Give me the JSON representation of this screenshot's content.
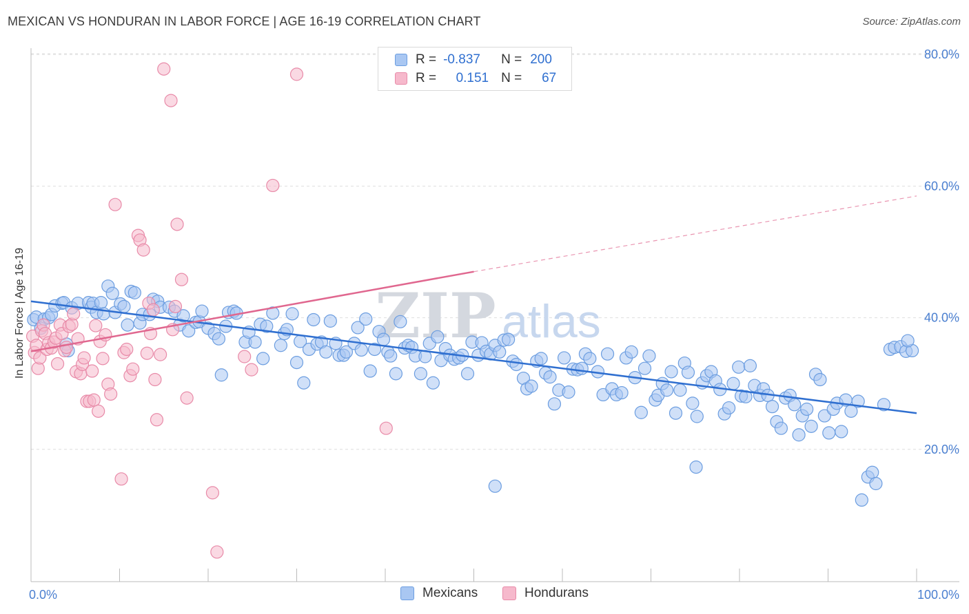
{
  "title": "MEXICAN VS HONDURAN IN LABOR FORCE | AGE 16-19 CORRELATION CHART",
  "source": "Source: ZipAtlas.com",
  "watermark": {
    "zip": "ZIP",
    "atlas": "atlas"
  },
  "legend": {
    "rows": [
      {
        "r_label": "R =",
        "r_value": "-0.837",
        "n_label": "N =",
        "n_value": "200"
      },
      {
        "r_label": "R =",
        "r_value": "0.151",
        "n_label": "N =",
        "n_value": "67"
      }
    ]
  },
  "bottom_legend": {
    "mexicans": "Mexicans",
    "hondurans": "Hondurans"
  },
  "colors": {
    "mexicans_fill": "#a9c7f2",
    "mexicans_stroke": "#6b9de0",
    "mexicans_line": "#2f6fd0",
    "hondurans_fill": "#f6b9cc",
    "hondurans_stroke": "#e88aa8",
    "hondurans_line": "#e0678f",
    "axis_text": "#4a7fd0",
    "grid": "#dedede"
  },
  "chart_data": {
    "type": "scatter",
    "title": "MEXICAN VS HONDURAN IN LABOR FORCE | AGE 16-19 CORRELATION CHART",
    "xlabel": "",
    "ylabel": "In Labor Force | Age 16-19",
    "xlim": [
      0,
      100
    ],
    "ylim": [
      0,
      82
    ],
    "x_tick_labels": [
      "0.0%",
      "100.0%"
    ],
    "y_ticks": [
      20,
      40,
      60,
      80
    ],
    "y_tick_labels": [
      "20.0%",
      "40.0%",
      "60.0%",
      "80.0%"
    ],
    "grid": true,
    "legend_position": "top-center",
    "series": [
      {
        "name": "Mexicans",
        "r": -0.837,
        "n": 200,
        "trend": {
          "x0": 0,
          "y0": 42.5,
          "x1": 100,
          "y1": 25.5,
          "dashed_from": null
        },
        "points": [
          [
            0.3,
            39.7
          ],
          [
            0.6,
            40.1
          ],
          [
            1.1,
            38.4
          ],
          [
            1.5,
            39.8
          ],
          [
            2,
            40
          ],
          [
            2.3,
            40.5
          ],
          [
            2.7,
            41.8
          ],
          [
            3.5,
            42.2
          ],
          [
            3.7,
            42.3
          ],
          [
            4,
            36
          ],
          [
            4.2,
            35
          ],
          [
            4.6,
            41.5
          ],
          [
            5.3,
            42.2
          ],
          [
            6.5,
            42.3
          ],
          [
            6.8,
            41.6
          ],
          [
            7,
            42.2
          ],
          [
            7.4,
            40.8
          ],
          [
            7.9,
            42.3
          ],
          [
            8.2,
            40.6
          ],
          [
            8.7,
            44.8
          ],
          [
            9.2,
            43.7
          ],
          [
            9.5,
            40.8
          ],
          [
            10.1,
            42.1
          ],
          [
            10.5,
            41.7
          ],
          [
            10.9,
            38.9
          ],
          [
            11.3,
            44
          ],
          [
            11.7,
            43.8
          ],
          [
            12.3,
            39.2
          ],
          [
            12.6,
            40.5
          ],
          [
            13.4,
            40.5
          ],
          [
            13.8,
            42.8
          ],
          [
            14.3,
            42.5
          ],
          [
            14.6,
            41.6
          ],
          [
            15.6,
            41.6
          ],
          [
            16.2,
            41
          ],
          [
            16.8,
            38.9
          ],
          [
            17.2,
            40.3
          ],
          [
            17.8,
            38
          ],
          [
            18.6,
            39.3
          ],
          [
            19,
            39.4
          ],
          [
            19.3,
            41
          ],
          [
            20,
            38.4
          ],
          [
            20.7,
            37.6
          ],
          [
            21.2,
            36.8
          ],
          [
            21.5,
            31.3
          ],
          [
            22,
            38.7
          ],
          [
            22.3,
            40.8
          ],
          [
            22.9,
            41
          ],
          [
            23.2,
            40.7
          ],
          [
            24.2,
            36.3
          ],
          [
            24.6,
            37.8
          ],
          [
            25.3,
            36.3
          ],
          [
            25.9,
            39
          ],
          [
            26.2,
            33.8
          ],
          [
            26.6,
            38.7
          ],
          [
            27.3,
            40.7
          ],
          [
            28.2,
            35.8
          ],
          [
            28.6,
            37.6
          ],
          [
            28.9,
            38.2
          ],
          [
            29.5,
            40.6
          ],
          [
            30,
            33.2
          ],
          [
            30.4,
            36.4
          ],
          [
            30.8,
            30.1
          ],
          [
            31.4,
            35.2
          ],
          [
            31.9,
            39.7
          ],
          [
            32.3,
            36
          ],
          [
            32.8,
            36.3
          ],
          [
            33.3,
            34.8
          ],
          [
            33.8,
            39.5
          ],
          [
            34.4,
            36.1
          ],
          [
            34.8,
            34.3
          ],
          [
            35.3,
            34.3
          ],
          [
            35.6,
            34.8
          ],
          [
            36.5,
            36.1
          ],
          [
            36.9,
            38.5
          ],
          [
            37.3,
            35.1
          ],
          [
            37.8,
            39.8
          ],
          [
            38.3,
            31.9
          ],
          [
            38.8,
            35.2
          ],
          [
            39.3,
            37.9
          ],
          [
            39.8,
            36.7
          ],
          [
            40.3,
            34.8
          ],
          [
            40.6,
            34.2
          ],
          [
            41.2,
            31.5
          ],
          [
            41.7,
            39.4
          ],
          [
            42.2,
            35.4
          ],
          [
            42.6,
            35.8
          ],
          [
            43,
            35.5
          ],
          [
            43.4,
            34.2
          ],
          [
            44,
            31.5
          ],
          [
            44.5,
            34.1
          ],
          [
            45,
            36.1
          ],
          [
            45.4,
            30.1
          ],
          [
            45.9,
            37.1
          ],
          [
            46.3,
            33.5
          ],
          [
            46.8,
            35.3
          ],
          [
            47.3,
            34.3
          ],
          [
            47.8,
            33.7
          ],
          [
            48.3,
            33.9
          ],
          [
            48.7,
            34.3
          ],
          [
            49.3,
            31.5
          ],
          [
            49.8,
            36.3
          ],
          [
            50.5,
            34.3
          ],
          [
            50.9,
            36.2
          ],
          [
            51.4,
            34.9
          ],
          [
            51.9,
            34.5
          ],
          [
            52.4,
            35.8
          ],
          [
            52.9,
            34.8
          ],
          [
            53.4,
            36.6
          ],
          [
            53.9,
            36.7
          ],
          [
            54.4,
            33.4
          ],
          [
            54.8,
            32.9
          ],
          [
            55.6,
            30.8
          ],
          [
            56,
            29.2
          ],
          [
            56.5,
            29.6
          ],
          [
            57.1,
            33.4
          ],
          [
            57.6,
            33.8
          ],
          [
            58.1,
            31.6
          ],
          [
            58.6,
            31
          ],
          [
            59.1,
            26.9
          ],
          [
            59.6,
            29
          ],
          [
            60.2,
            33.9
          ],
          [
            60.7,
            28.7
          ],
          [
            61.2,
            32.2
          ],
          [
            61.7,
            32.1
          ],
          [
            62.2,
            32.3
          ],
          [
            62.6,
            34.5
          ],
          [
            63.1,
            33.8
          ],
          [
            64,
            31.8
          ],
          [
            64.6,
            28.3
          ],
          [
            65.1,
            34.5
          ],
          [
            65.6,
            29.2
          ],
          [
            66.1,
            28.3
          ],
          [
            66.7,
            28.6
          ],
          [
            67.2,
            33.9
          ],
          [
            67.8,
            34.8
          ],
          [
            68.2,
            30.9
          ],
          [
            68.9,
            25.6
          ],
          [
            69.3,
            32.3
          ],
          [
            69.8,
            34.2
          ],
          [
            70.5,
            27.5
          ],
          [
            70.8,
            28.2
          ],
          [
            71.3,
            30
          ],
          [
            71.8,
            29
          ],
          [
            72.3,
            31.8
          ],
          [
            72.8,
            25.5
          ],
          [
            73.3,
            29
          ],
          [
            73.8,
            33.1
          ],
          [
            74.2,
            31.7
          ],
          [
            74.7,
            27
          ],
          [
            75.2,
            25
          ],
          [
            75.8,
            30.1
          ],
          [
            76.3,
            31.2
          ],
          [
            76.8,
            31.8
          ],
          [
            77.3,
            30.4
          ],
          [
            77.8,
            29.1
          ],
          [
            78.3,
            25.4
          ],
          [
            78.8,
            26.3
          ],
          [
            79.3,
            30
          ],
          [
            79.9,
            32.5
          ],
          [
            80.2,
            28.1
          ],
          [
            80.7,
            28
          ],
          [
            81.2,
            32.7
          ],
          [
            81.7,
            29.7
          ],
          [
            82.3,
            28.2
          ],
          [
            82.7,
            29.2
          ],
          [
            83.2,
            28.2
          ],
          [
            83.7,
            26.5
          ],
          [
            84.2,
            24.2
          ],
          [
            84.7,
            23.2
          ],
          [
            85.2,
            27.8
          ],
          [
            85.7,
            28.2
          ],
          [
            86.2,
            26.8
          ],
          [
            86.7,
            22.2
          ],
          [
            87.1,
            25.1
          ],
          [
            87.6,
            26.1
          ],
          [
            88.1,
            23.5
          ],
          [
            88.6,
            31.4
          ],
          [
            89.1,
            30.6
          ],
          [
            89.6,
            25.1
          ],
          [
            90.1,
            22.5
          ],
          [
            90.6,
            26.1
          ],
          [
            91,
            27
          ],
          [
            91.5,
            22.7
          ],
          [
            92,
            27.5
          ],
          [
            92.6,
            25.8
          ],
          [
            93.4,
            27.3
          ],
          [
            93.8,
            12.3
          ],
          [
            94.5,
            15.8
          ],
          [
            95,
            16.5
          ],
          [
            95.4,
            14.8
          ],
          [
            96.3,
            26.8
          ],
          [
            97,
            35.2
          ],
          [
            97.5,
            35.5
          ],
          [
            98.2,
            35.6
          ],
          [
            98.8,
            34.9
          ],
          [
            75.1,
            17.3
          ],
          [
            52.4,
            14.4
          ],
          [
            99.5,
            35
          ],
          [
            99,
            36.5
          ]
        ]
      },
      {
        "name": "Hondurans",
        "r": 0.151,
        "n": 67,
        "trend": {
          "x0": 0,
          "y0": 34.9,
          "x1": 50,
          "y1": 47.0,
          "dashed_to_x": 100,
          "dashed_to_y": 58.5
        },
        "points": [
          [
            0.2,
            37.2
          ],
          [
            0.4,
            34.7
          ],
          [
            0.6,
            35.8
          ],
          [
            0.8,
            32.3
          ],
          [
            1,
            33.9
          ],
          [
            1.2,
            38
          ],
          [
            1.4,
            38.9
          ],
          [
            1.6,
            37.6
          ],
          [
            1.8,
            35.2
          ],
          [
            2,
            36.2
          ],
          [
            2.3,
            35.4
          ],
          [
            2.6,
            36.3
          ],
          [
            2.8,
            36.9
          ],
          [
            3,
            33
          ],
          [
            3.3,
            38.9
          ],
          [
            3.5,
            37.6
          ],
          [
            3.8,
            35
          ],
          [
            4,
            35.5
          ],
          [
            4.3,
            38.7
          ],
          [
            4.6,
            39
          ],
          [
            4.8,
            40.6
          ],
          [
            5.1,
            31.8
          ],
          [
            5.3,
            36.8
          ],
          [
            5.6,
            31.5
          ],
          [
            5.8,
            32.9
          ],
          [
            6,
            33.9
          ],
          [
            6.3,
            27.3
          ],
          [
            6.6,
            27.3
          ],
          [
            6.9,
            31.9
          ],
          [
            7.1,
            27.5
          ],
          [
            7.3,
            38.8
          ],
          [
            7.6,
            25.8
          ],
          [
            7.8,
            36.4
          ],
          [
            8.1,
            33.8
          ],
          [
            8.4,
            37.4
          ],
          [
            8.7,
            29.9
          ],
          [
            9,
            28.4
          ],
          [
            9.5,
            57.2
          ],
          [
            10.2,
            15.5
          ],
          [
            10.5,
            34.7
          ],
          [
            10.8,
            35.2
          ],
          [
            11.2,
            31.2
          ],
          [
            11.5,
            32.2
          ],
          [
            12.1,
            52.5
          ],
          [
            12.3,
            51.8
          ],
          [
            12.7,
            50.3
          ],
          [
            13.1,
            34.6
          ],
          [
            13.3,
            42.2
          ],
          [
            13.5,
            37.6
          ],
          [
            13.8,
            41.2
          ],
          [
            14,
            30.6
          ],
          [
            14.2,
            24.5
          ],
          [
            14.6,
            34.4
          ],
          [
            15,
            77.8
          ],
          [
            15.8,
            73
          ],
          [
            16.3,
            41.7
          ],
          [
            16.5,
            54.2
          ],
          [
            17,
            45.8
          ],
          [
            17.6,
            27.8
          ],
          [
            20.5,
            13.4
          ],
          [
            21,
            4.4
          ],
          [
            24.1,
            34.1
          ],
          [
            24.9,
            32.1
          ],
          [
            27.3,
            60.1
          ],
          [
            30,
            77
          ],
          [
            40.1,
            23.2
          ],
          [
            16,
            38.2
          ]
        ]
      }
    ]
  }
}
